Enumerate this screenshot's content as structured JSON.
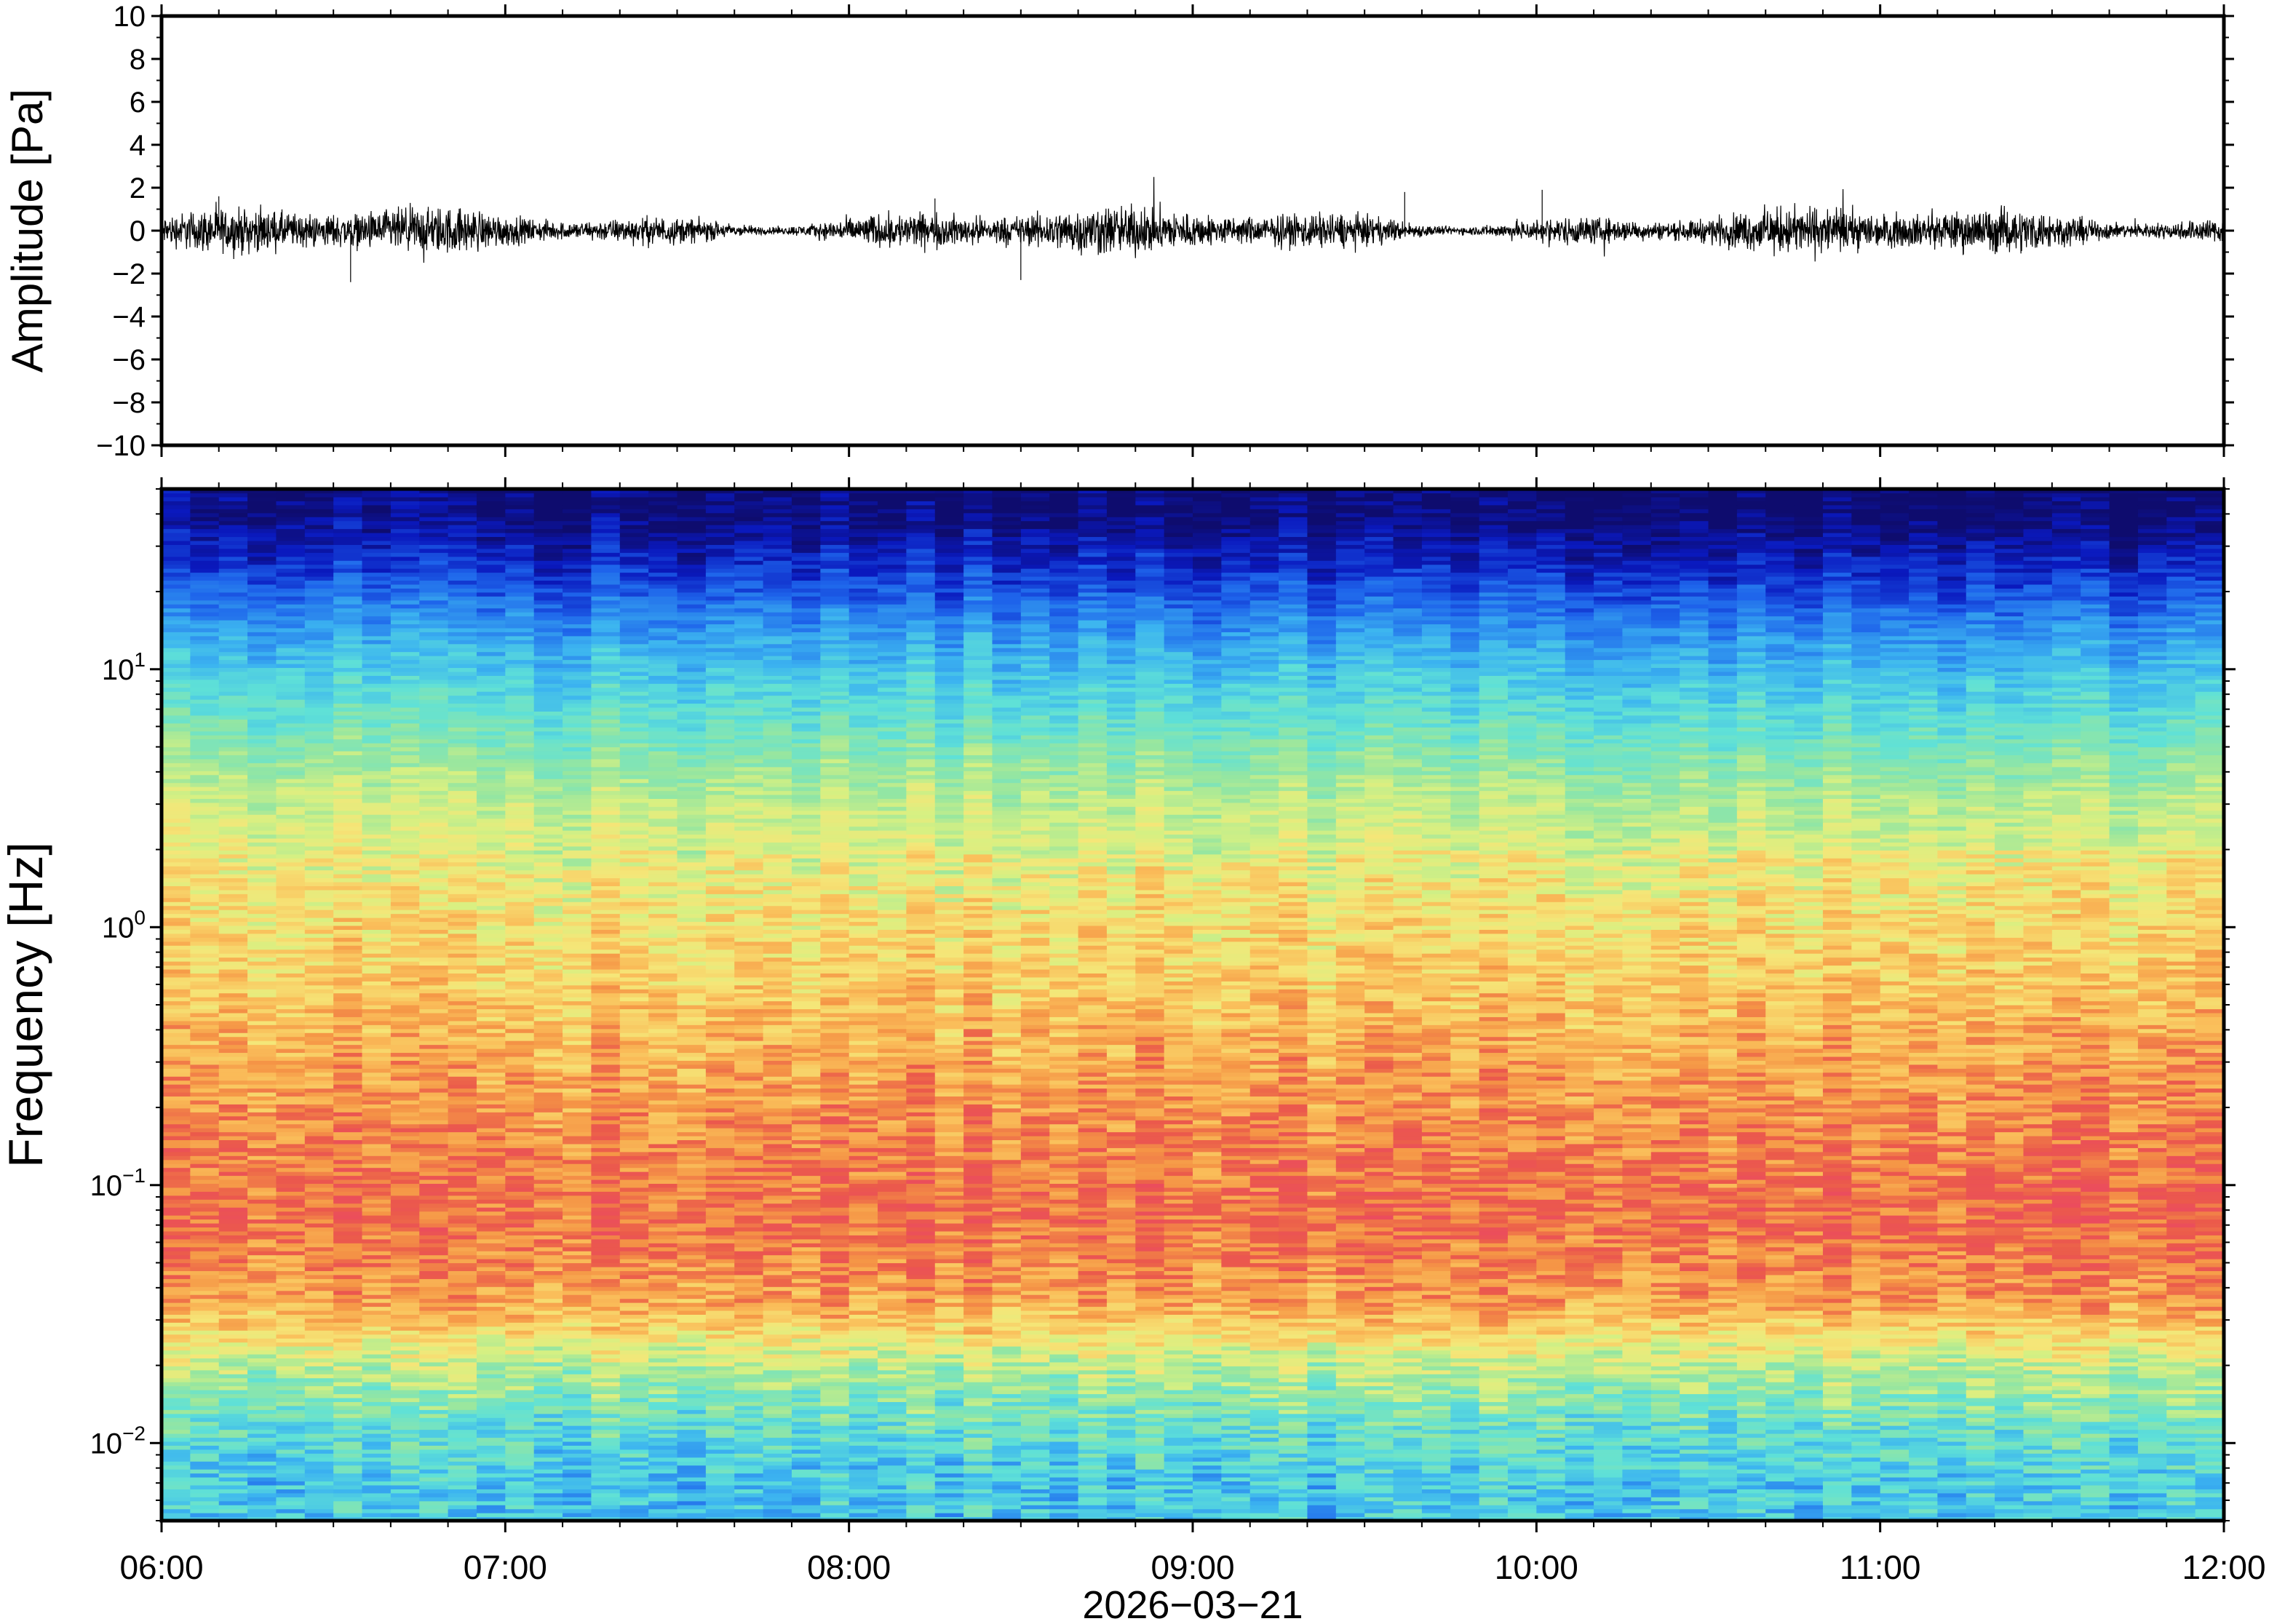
{
  "chart_data": [
    {
      "type": "line",
      "panel": "waveform",
      "ylabel": "Amplitude [Pa]",
      "ylim": [
        -10,
        10
      ],
      "yticks": [
        -10,
        -8,
        -6,
        -4,
        -2,
        0,
        2,
        4,
        6,
        8,
        10
      ],
      "ytick_labels": [
        "−10",
        "−8",
        "−6",
        "−4",
        "−2",
        "0",
        "2",
        "4",
        "6",
        "8",
        "10"
      ],
      "xlim": [
        "06:00",
        "12:00"
      ],
      "line_color": "#000000",
      "noise_amplitude_approx": 0.6,
      "peak_excursions": [
        {
          "time": "06:33",
          "value": -2.4
        },
        {
          "time": "08:30",
          "value": -2.3
        },
        {
          "time": "09:37",
          "value": 1.8
        },
        {
          "time": "10:01",
          "value": 1.9
        },
        {
          "time": "06:10",
          "value": 1.6
        },
        {
          "time": "08:15",
          "value": 1.5
        }
      ]
    },
    {
      "type": "heatmap",
      "panel": "spectrogram",
      "ylabel": "Frequency [Hz]",
      "yscale": "log",
      "ylim": [
        0.005,
        50
      ],
      "yticks": [
        0.01,
        0.1,
        1,
        10
      ],
      "ytick_labels": [
        {
          "base": "10",
          "exp": "−2"
        },
        {
          "base": "10",
          "exp": "−1"
        },
        {
          "base": "10",
          "exp": "0"
        },
        {
          "base": "10",
          "exp": "1"
        }
      ],
      "xlim": [
        "06:00",
        "12:00"
      ],
      "colormap": "rainbow (blue = low power, red = high power)",
      "power_profile": [
        {
          "frequency": 40,
          "level": 0.03
        },
        {
          "frequency": 25,
          "level": 0.13
        },
        {
          "frequency": 12,
          "level": 0.32
        },
        {
          "frequency": 6,
          "level": 0.45
        },
        {
          "frequency": 3,
          "level": 0.58
        },
        {
          "frequency": 1.5,
          "level": 0.64
        },
        {
          "frequency": 0.7,
          "level": 0.7
        },
        {
          "frequency": 0.3,
          "level": 0.78
        },
        {
          "frequency": 0.15,
          "level": 0.84
        },
        {
          "frequency": 0.07,
          "level": 0.88
        },
        {
          "frequency": 0.035,
          "level": 0.79
        },
        {
          "frequency": 0.02,
          "level": 0.55
        },
        {
          "frequency": 0.012,
          "level": 0.42
        },
        {
          "frequency": 0.007,
          "level": 0.34
        }
      ]
    }
  ],
  "x_axis": {
    "tick_labels": [
      "06:00",
      "07:00",
      "08:00",
      "09:00",
      "10:00",
      "11:00",
      "12:00"
    ],
    "date_label": "2026−03−21"
  }
}
